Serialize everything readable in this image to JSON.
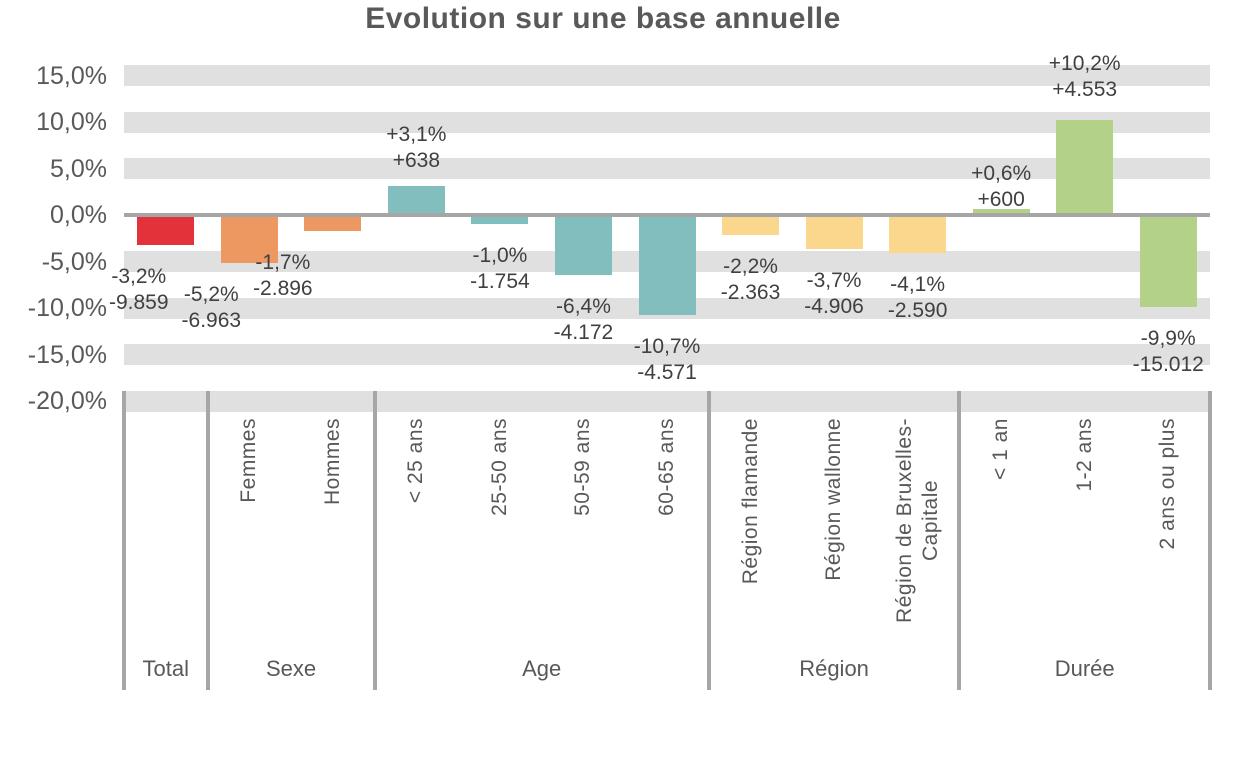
{
  "page": {
    "background": "#FFFFFF"
  },
  "chart_data": {
    "type": "bar",
    "title": "Evolution sur une base annuelle",
    "value_format": "percent",
    "legend": "none",
    "y_axis": {
      "min": -20,
      "max": 15,
      "step": 5,
      "gridline_style": "thick-gray-bands",
      "ticks": [
        {
          "value": 15,
          "label": "15,0%"
        },
        {
          "value": 10,
          "label": "10,0%"
        },
        {
          "value": 5,
          "label": "5,0%"
        },
        {
          "value": 0,
          "label": "0,0%"
        },
        {
          "value": -5,
          "label": "-5,0%"
        },
        {
          "value": -10,
          "label": "-10,0%"
        },
        {
          "value": -15,
          "label": "-15,0%"
        },
        {
          "value": -20,
          "label": "-20,0%"
        }
      ]
    },
    "groups": [
      {
        "label": "Total",
        "color": "#E4323B",
        "bars": [
          {
            "category": "",
            "value_pct": -3.2,
            "pct_label": "-3,2%",
            "abs_label": "-9.859"
          }
        ]
      },
      {
        "label": "Sexe",
        "color": "#EE9861",
        "bars": [
          {
            "category": "Femmes",
            "value_pct": -5.2,
            "pct_label": "-5,2%",
            "abs_label": "-6.963"
          },
          {
            "category": "Hommes",
            "value_pct": -1.7,
            "pct_label": "-1,7%",
            "abs_label": "-2.896"
          }
        ]
      },
      {
        "label": "Age",
        "color": "#82BEBE",
        "bars": [
          {
            "category": "< 25 ans",
            "value_pct": 3.1,
            "pct_label": "+3,1%",
            "abs_label": "+638"
          },
          {
            "category": "25-50 ans",
            "value_pct": -1.0,
            "pct_label": "-1,0%",
            "abs_label": "-1.754"
          },
          {
            "category": "50-59 ans",
            "value_pct": -6.4,
            "pct_label": "-6,4%",
            "abs_label": "-4.172"
          },
          {
            "category": "60-65 ans",
            "value_pct": -10.7,
            "pct_label": "-10,7%",
            "abs_label": "-4.571"
          }
        ]
      },
      {
        "label": "Région",
        "color": "#FAD78C",
        "bars": [
          {
            "category": "Région flamande",
            "value_pct": -2.2,
            "pct_label": "-2,2%",
            "abs_label": "-2.363"
          },
          {
            "category": "Région wallonne",
            "value_pct": -3.7,
            "pct_label": "-3,7%",
            "abs_label": "-4.906"
          },
          {
            "category": "Région de Bruxelles-\nCapitale",
            "value_pct": -4.1,
            "pct_label": "-4,1%",
            "abs_label": "-2.590"
          }
        ]
      },
      {
        "label": "Durée",
        "color": "#B3D287",
        "bars": [
          {
            "category": "< 1 an",
            "value_pct": 0.6,
            "pct_label": "+0,6%",
            "abs_label": "+600"
          },
          {
            "category": "1-2 ans",
            "value_pct": 10.2,
            "pct_label": "+10,2%",
            "abs_label": "+4.553"
          },
          {
            "category": "2 ans ou plus",
            "value_pct": -9.9,
            "pct_label": "-9,9%",
            "abs_label": "-15.012"
          }
        ]
      }
    ],
    "colors": {
      "band": "#E0E0E0",
      "axis_line": "#A6A6A6",
      "separator": "#A6A6A6",
      "title_text": "#595959",
      "axis_text": "#595959",
      "label_text": "#404040"
    }
  }
}
